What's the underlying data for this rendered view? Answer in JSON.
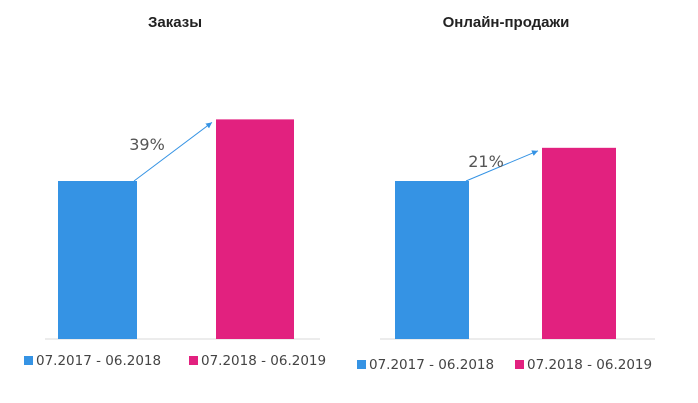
{
  "colors": {
    "period_1": "#3593e4",
    "period_2": "#e2217f",
    "arrow": "#3593e4",
    "axis": "#d9d9d9"
  },
  "chart_data": [
    {
      "type": "bar",
      "title": "Заказы",
      "categories": [
        "07.2017 - 06.2018",
        "07.2018 - 06.2019"
      ],
      "values": [
        100,
        139
      ],
      "growth_label": "39%",
      "legend": [
        "07.2017 - 06.2018",
        "07.2018 - 06.2019"
      ],
      "legend_placement": "bottom",
      "grid": false
    },
    {
      "type": "bar",
      "title": "Онлайн-продажи",
      "categories": [
        "07.2017 - 06.2018",
        "07.2018 - 06.2019"
      ],
      "values": [
        100,
        121
      ],
      "growth_label": "21%",
      "legend": [
        "07.2017 - 06.2018",
        "07.2018 - 06.2019"
      ],
      "legend_placement": "bottom",
      "grid": false
    }
  ]
}
